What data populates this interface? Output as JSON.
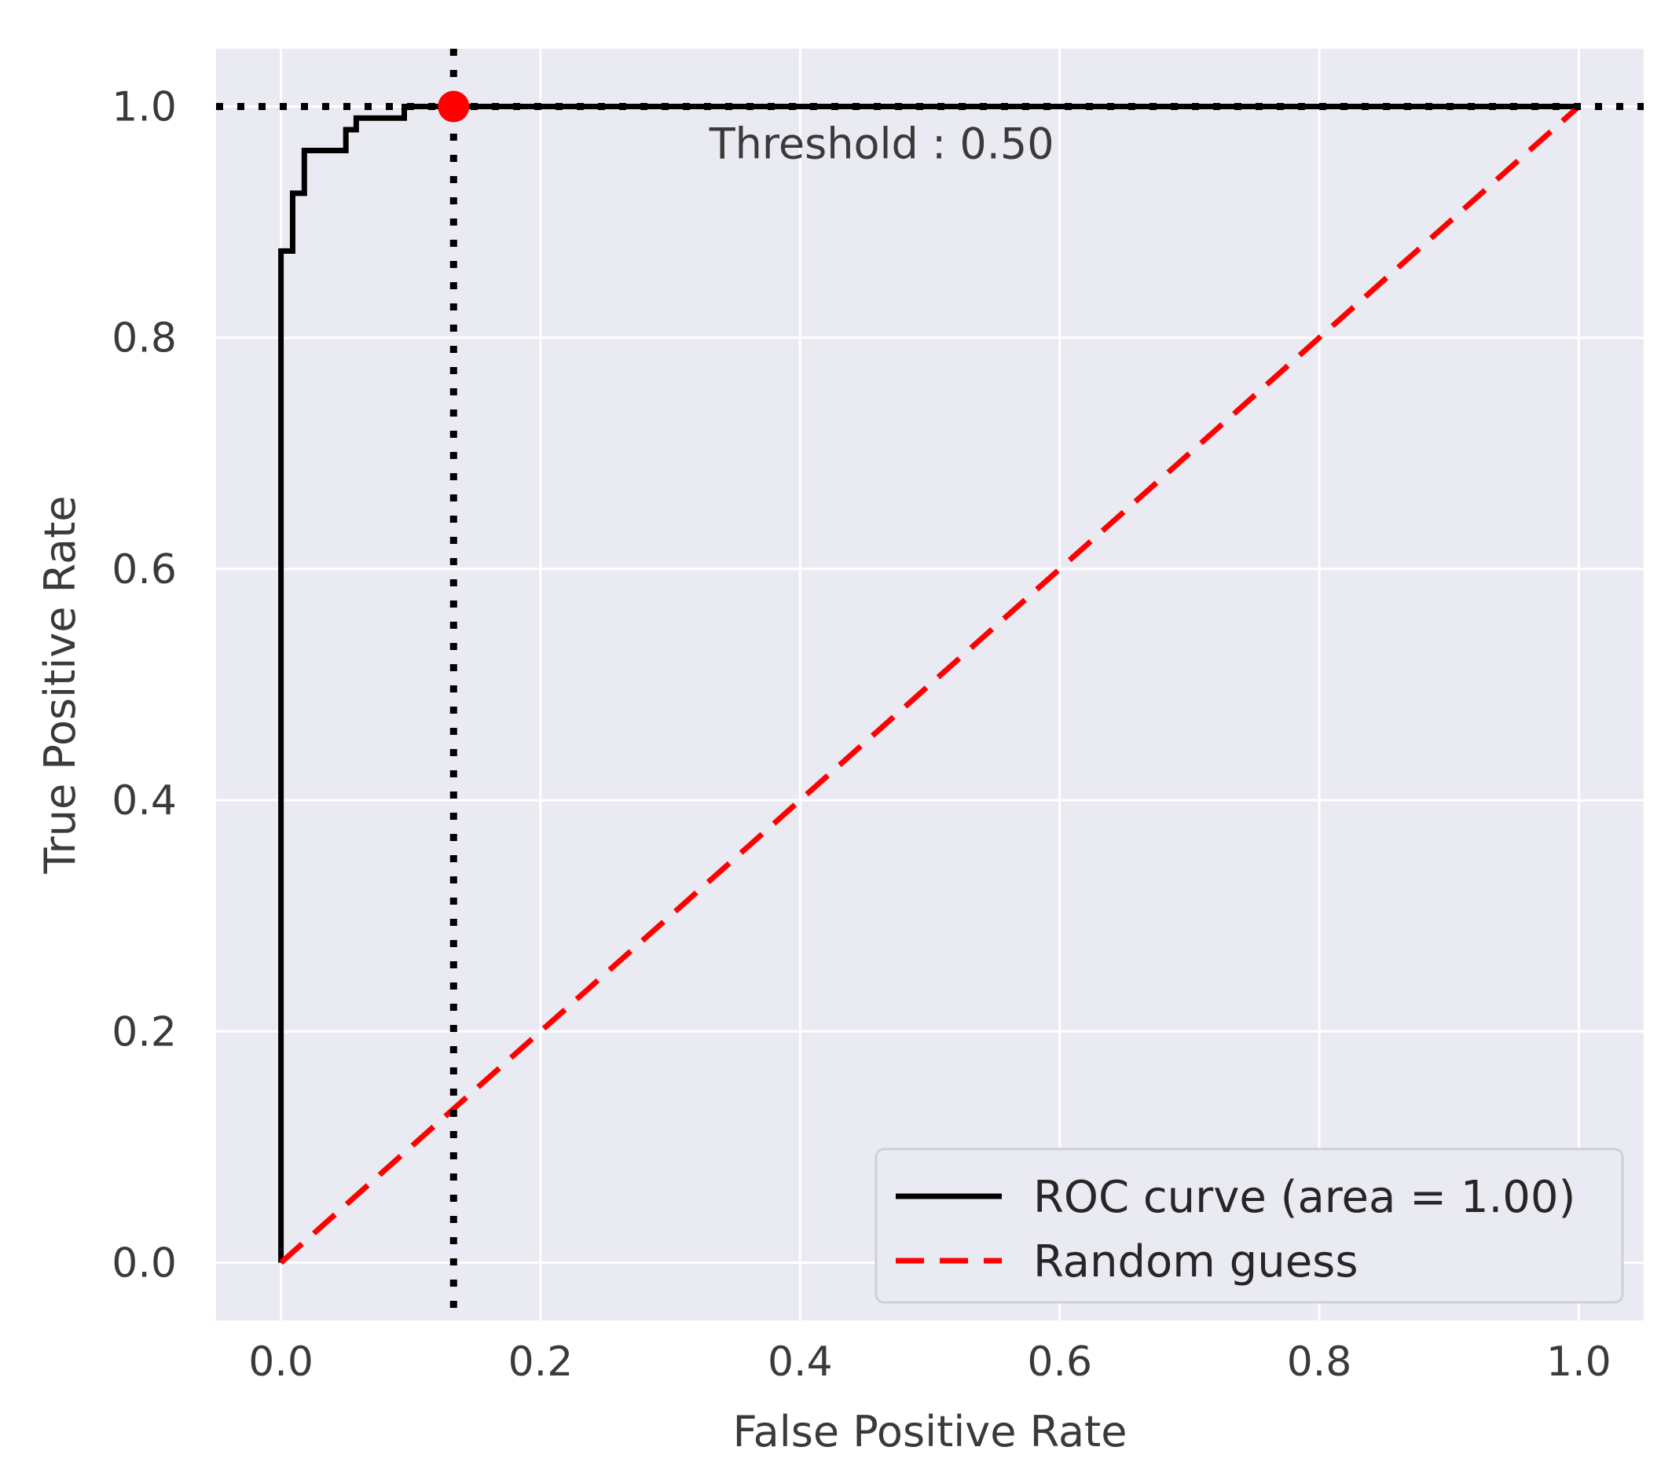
{
  "chart_data": {
    "type": "line",
    "title": "",
    "xlabel": "False Positive Rate",
    "ylabel": "True Positive Rate",
    "xlim": [
      -0.05,
      1.05
    ],
    "ylim": [
      -0.05,
      1.05
    ],
    "x_ticks": [
      "0.0",
      "0.2",
      "0.4",
      "0.6",
      "0.8",
      "1.0"
    ],
    "y_ticks": [
      "0.0",
      "0.2",
      "0.4",
      "0.6",
      "0.8",
      "1.0"
    ],
    "grid": true,
    "style": "seaborn-darkgrid",
    "series": [
      {
        "name": "ROC curve (area = 1.00)",
        "color": "#000000",
        "line_style": "solid",
        "step": true,
        "x": [
          0.0,
          0.0,
          0.009,
          0.009,
          0.018,
          0.018,
          0.05,
          0.05,
          0.058,
          0.058,
          0.095,
          0.095,
          1.0
        ],
        "y": [
          0.0,
          0.875,
          0.875,
          0.925,
          0.925,
          0.962,
          0.962,
          0.98,
          0.98,
          0.99,
          0.99,
          1.0,
          1.0
        ]
      },
      {
        "name": "Random guess",
        "color": "#ff0000",
        "line_style": "dashed",
        "x": [
          0.0,
          1.0
        ],
        "y": [
          0.0,
          1.0
        ]
      }
    ],
    "reference_lines": [
      {
        "orientation": "horizontal",
        "value": 1.0,
        "color": "#000000",
        "style": "dotted"
      },
      {
        "orientation": "vertical",
        "value": 0.133,
        "color": "#000000",
        "style": "dotted"
      }
    ],
    "marker": {
      "x": 0.133,
      "y": 1.0,
      "color": "#ff0000"
    },
    "annotation": {
      "text": "Threshold : 0.50",
      "x": 0.33,
      "y": 0.955
    },
    "legend": {
      "position": "lower right",
      "entries": [
        "ROC curve (area = 1.00)",
        "Random guess"
      ]
    },
    "colors": {
      "plot_bg": "#eaeaf2",
      "grid": "#ffffff",
      "text": "#3a3a3a"
    }
  }
}
